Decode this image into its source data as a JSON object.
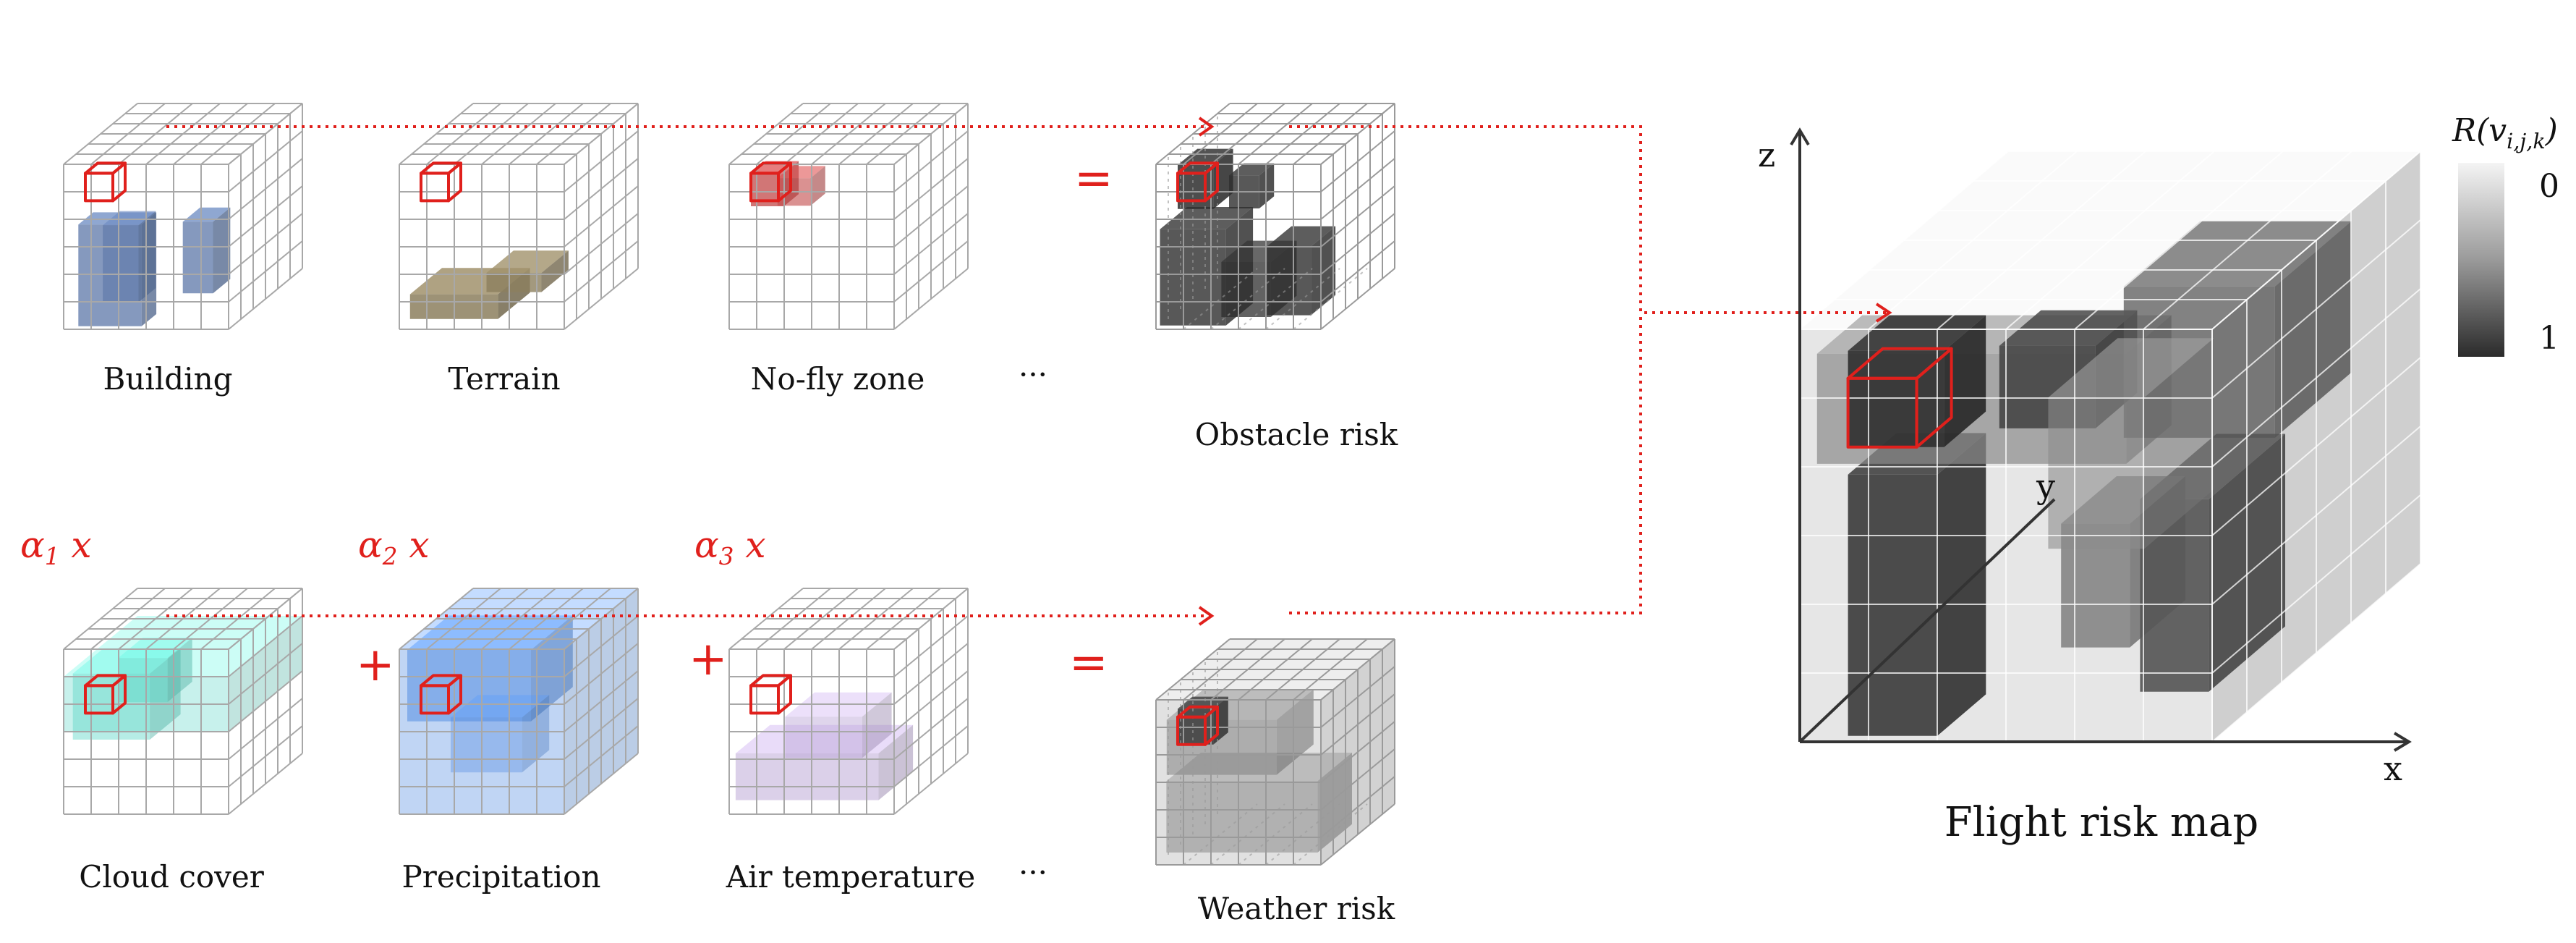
{
  "top_row": {
    "building": "Building",
    "terrain": "Terrain",
    "nofly": "No-fly zone",
    "ellipsis": "···",
    "equals": "=",
    "result": "Obstacle risk"
  },
  "bottom_row": {
    "alpha1": "α1 x",
    "alpha2": "α2 x",
    "alpha3": "α3 x",
    "plus1": "+",
    "plus2": "+",
    "cloud": "Cloud cover",
    "precip": "Precipitation",
    "airtemp": "Air temperature",
    "ellipsis": "···",
    "equals": "=",
    "result": "Weather risk"
  },
  "risk_map": {
    "title": "Flight risk map",
    "axis_x": "x",
    "axis_y": "y",
    "axis_z": "z",
    "scale_title": "R(vi,j,k)",
    "scale_top": "0",
    "scale_bottom": "1"
  },
  "colors": {
    "highlight": "#e0201c",
    "building": "#5c77a8",
    "terrain": "#8c7f5e",
    "nofly": "#c24848",
    "cloud": "#5ed8c8",
    "precip": "#4a88e0",
    "airtemp": "#b8a2d4",
    "dark": "#2e2e2e",
    "grid": "#9a9a9a"
  }
}
